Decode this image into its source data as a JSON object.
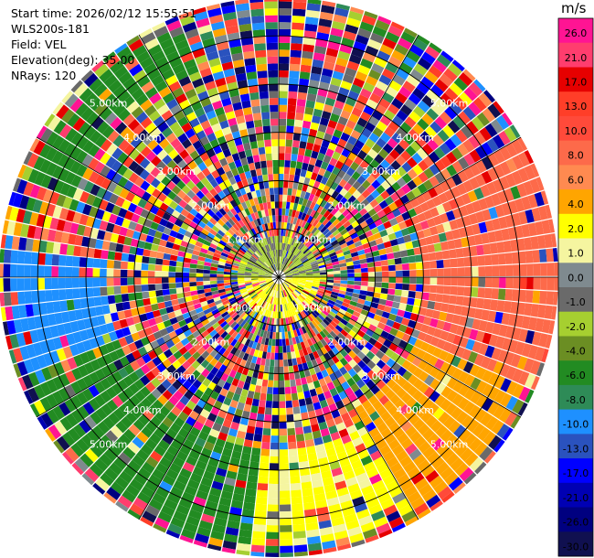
{
  "header": {
    "start_time": "Start time: 2026/02/12 15:55:51",
    "instrument": "WLS200s-181",
    "field": "Field: VEL",
    "elevation": "Elevation(deg): 35.00",
    "nrays": "NRays: 120"
  },
  "colorbar": {
    "unit": "m/s",
    "levels": [
      {
        "label": "26.0",
        "color": "#ff1493"
      },
      {
        "label": "21.0",
        "color": "#ff3d6e"
      },
      {
        "label": "17.0",
        "color": "#e60000"
      },
      {
        "label": "13.0",
        "color": "#ff3e28"
      },
      {
        "label": "10.0",
        "color": "#ff4a3a"
      },
      {
        "label": "8.0",
        "color": "#fd6a4a"
      },
      {
        "label": "6.0",
        "color": "#ff8a50"
      },
      {
        "label": "4.0",
        "color": "#ffa500"
      },
      {
        "label": "2.0",
        "color": "#ffff00"
      },
      {
        "label": "1.0",
        "color": "#f5f5a0"
      },
      {
        "label": "0.0",
        "color": "#7f8a8f"
      },
      {
        "label": "-1.0",
        "color": "#6a6a6a"
      },
      {
        "label": "-2.0",
        "color": "#a6cf30"
      },
      {
        "label": "-4.0",
        "color": "#6b8e23"
      },
      {
        "label": "-6.0",
        "color": "#228b22"
      },
      {
        "label": "-8.0",
        "color": "#2e8b57"
      },
      {
        "label": "-10.0",
        "color": "#1e90ff"
      },
      {
        "label": "-13.0",
        "color": "#2a52be"
      },
      {
        "label": "-17.0",
        "color": "#0000ff"
      },
      {
        "label": "-21.0",
        "color": "#0000b3"
      },
      {
        "label": "-26.0",
        "color": "#000080"
      },
      {
        "label": "-30.0",
        "color": "#101050"
      }
    ]
  },
  "chart_data": {
    "type": "heatmap",
    "projection": "polar PPI",
    "field": "VEL",
    "units": "m/s",
    "nrays": 120,
    "range_labels": [
      "1.00km",
      "2.00km",
      "3.00km",
      "4.00km",
      "5.00km"
    ],
    "range_rings_km": [
      1,
      2,
      3,
      4,
      5
    ],
    "max_range_km": 5.8,
    "dominant_patterns": [
      {
        "sector_deg": [
          60,
          115
        ],
        "range_km": [
          3.0,
          5.8
        ],
        "value_ms": 8.0
      },
      {
        "sector_deg": [
          115,
          150
        ],
        "range_km": [
          3.2,
          5.5
        ],
        "value_ms": 4.0
      },
      {
        "sector_deg": [
          150,
          185
        ],
        "range_km": [
          3.6,
          5.5
        ],
        "value_ms": 2.0
      },
      {
        "sector_deg": [
          185,
          250
        ],
        "range_km": [
          3.6,
          5.5
        ],
        "value_ms": -6.0
      },
      {
        "sector_deg": [
          250,
          275
        ],
        "range_km": [
          3.6,
          5.5
        ],
        "value_ms": -10.0
      },
      {
        "sector_deg": [
          290,
          340
        ],
        "range_km": [
          4.6,
          5.5
        ],
        "value_ms": -6.0
      },
      {
        "sector_deg": [
          90,
          270
        ],
        "range_km": [
          0.2,
          0.9
        ],
        "value_ms": 2.0
      },
      {
        "sector_deg": [
          270,
          450
        ],
        "range_km": [
          0.2,
          0.9
        ],
        "value_ms": -2.0
      }
    ],
    "background": "noise"
  }
}
